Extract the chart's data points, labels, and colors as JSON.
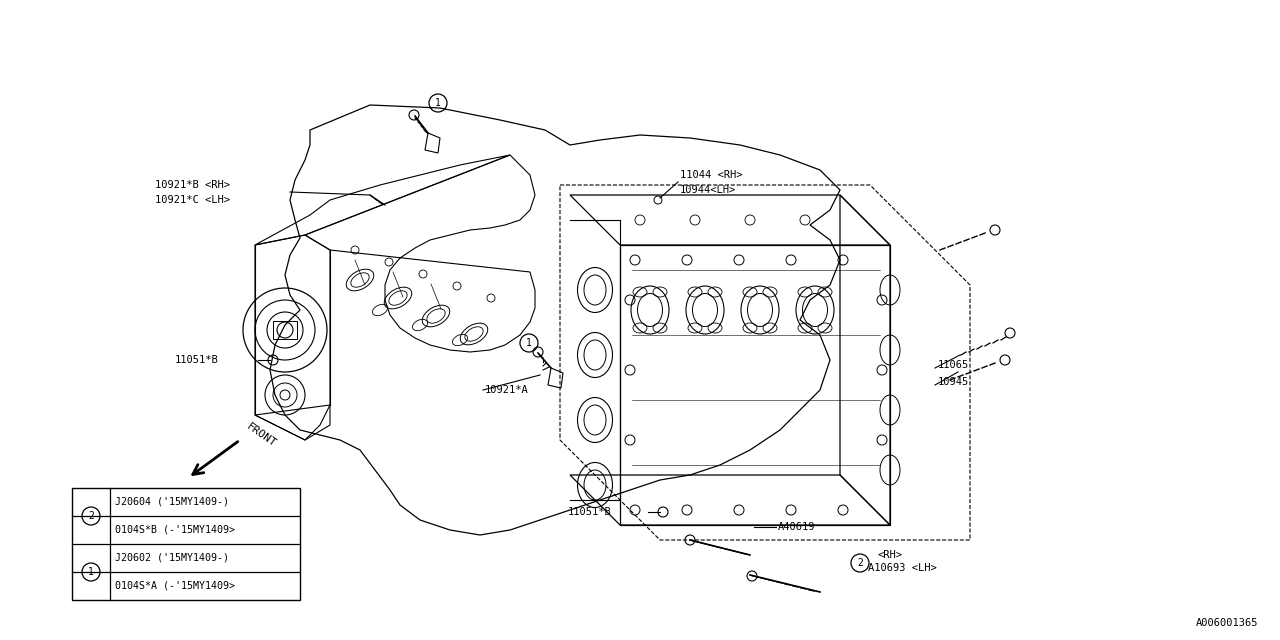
{
  "bg_color": "#ffffff",
  "lc": "#000000",
  "fc": "#000000",
  "diagram_id": "A006001365",
  "labels": {
    "10921B_RH": "10921*B <RH>",
    "10921C_LH": "10921*C <LH>",
    "10921A": "10921*A",
    "11051B": "11051*B",
    "11044_RH": "11044 <RH>",
    "10944_LH": "10944<LH>",
    "11065": "11065",
    "10945": "10945",
    "A40619": "A40619",
    "A10693_RH": "<RH>",
    "A10693_LH": "A10693 <LH>"
  },
  "legend_rows": [
    {
      "symbol": "1",
      "row1": "0104S*A (-'15MY1409>",
      "row2": "J20602 ('15MY1409-)"
    },
    {
      "symbol": "2",
      "row1": "0104S*B (-'15MY1409>",
      "row2": "J20604 ('15MY1409-)"
    }
  ]
}
